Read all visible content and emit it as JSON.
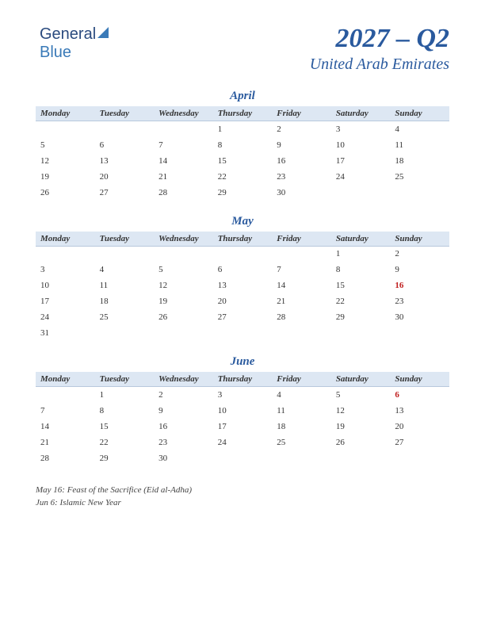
{
  "logo": {
    "part1": "General",
    "part2": "Blue"
  },
  "header": {
    "title": "2027 – Q2",
    "subtitle": "United Arab Emirates"
  },
  "dayHeaders": [
    "Monday",
    "Tuesday",
    "Wednesday",
    "Thursday",
    "Friday",
    "Saturday",
    "Sunday"
  ],
  "months": [
    {
      "name": "April",
      "weeks": [
        [
          "",
          "",
          "",
          "1",
          "2",
          "3",
          "4"
        ],
        [
          "5",
          "6",
          "7",
          "8",
          "9",
          "10",
          "11"
        ],
        [
          "12",
          "13",
          "14",
          "15",
          "16",
          "17",
          "18"
        ],
        [
          "19",
          "20",
          "21",
          "22",
          "23",
          "24",
          "25"
        ],
        [
          "26",
          "27",
          "28",
          "29",
          "30",
          "",
          ""
        ]
      ],
      "holidays": []
    },
    {
      "name": "May",
      "weeks": [
        [
          "",
          "",
          "",
          "",
          "",
          "1",
          "2"
        ],
        [
          "3",
          "4",
          "5",
          "6",
          "7",
          "8",
          "9"
        ],
        [
          "10",
          "11",
          "12",
          "13",
          "14",
          "15",
          "16"
        ],
        [
          "17",
          "18",
          "19",
          "20",
          "21",
          "22",
          "23"
        ],
        [
          "24",
          "25",
          "26",
          "27",
          "28",
          "29",
          "30"
        ],
        [
          "31",
          "",
          "",
          "",
          "",
          "",
          ""
        ]
      ],
      "holidays": [
        "16"
      ]
    },
    {
      "name": "June",
      "weeks": [
        [
          "",
          "1",
          "2",
          "3",
          "4",
          "5",
          "6"
        ],
        [
          "7",
          "8",
          "9",
          "10",
          "11",
          "12",
          "13"
        ],
        [
          "14",
          "15",
          "16",
          "17",
          "18",
          "19",
          "20"
        ],
        [
          "21",
          "22",
          "23",
          "24",
          "25",
          "26",
          "27"
        ],
        [
          "28",
          "29",
          "30",
          "",
          "",
          "",
          ""
        ]
      ],
      "holidays": [
        "6"
      ]
    }
  ],
  "notes": [
    "May 16: Feast of the Sacrifice (Eid al-Adha)",
    "Jun 6: Islamic New Year"
  ],
  "colors": {
    "accent": "#2a5a9e",
    "header_bg": "#dde7f3",
    "holiday": "#c02020",
    "background": "#ffffff"
  }
}
